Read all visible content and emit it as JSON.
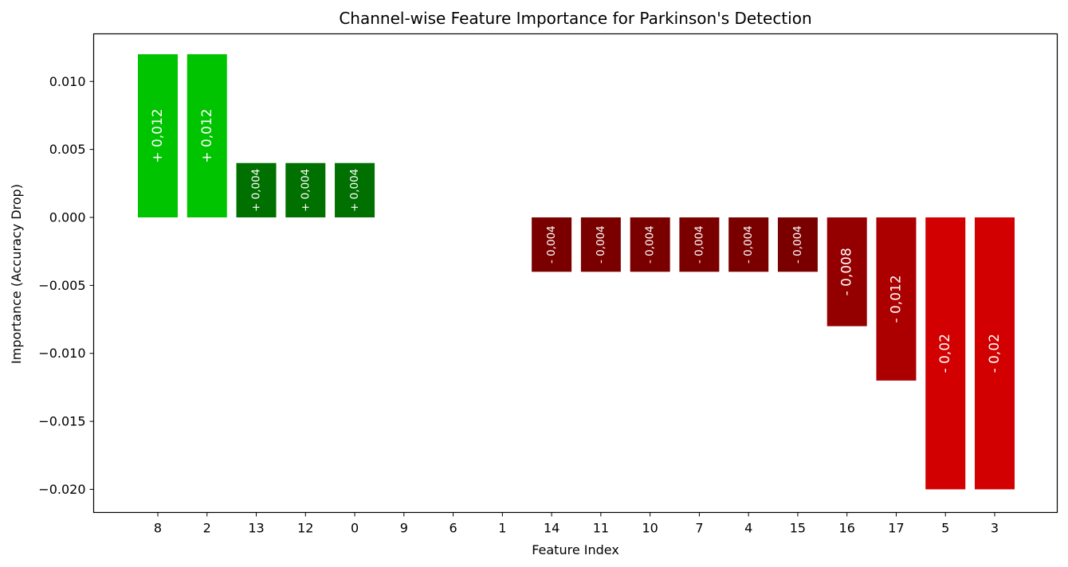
{
  "chart_data": {
    "type": "bar",
    "title": "Channel-wise Feature Importance for Parkinson's Detection",
    "xlabel": "Feature Index",
    "ylabel": "Importance (Accuracy Drop)",
    "categories": [
      "8",
      "2",
      "13",
      "12",
      "0",
      "9",
      "6",
      "1",
      "14",
      "11",
      "10",
      "7",
      "4",
      "15",
      "16",
      "17",
      "5",
      "3"
    ],
    "values": [
      0.012,
      0.012,
      0.004,
      0.004,
      0.004,
      0,
      0,
      0,
      -0.004,
      -0.004,
      -0.004,
      -0.004,
      -0.004,
      -0.004,
      -0.008,
      -0.012,
      -0.02,
      -0.02
    ],
    "bar_labels": [
      "+ 0,012",
      "+ 0,012",
      "+ 0,004",
      "+ 0,004",
      "+ 0,004",
      "",
      "",
      "",
      "- 0,004",
      "- 0,004",
      "- 0,004",
      "- 0,004",
      "- 0,004",
      "- 0,004",
      "- 0,008",
      "- 0,012",
      "- 0,02",
      "- 0,02"
    ],
    "bar_colors": [
      "#00c400",
      "#00c400",
      "#007000",
      "#007000",
      "#007000",
      "#ffffff",
      "#ffffff",
      "#ffffff",
      "#7a0000",
      "#7a0000",
      "#7a0000",
      "#7a0000",
      "#7a0000",
      "#7a0000",
      "#940000",
      "#ac0000",
      "#d20000",
      "#d20000"
    ],
    "ylim": [
      -0.0217,
      0.0135
    ],
    "yticks": [
      -0.02,
      -0.015,
      -0.01,
      -0.005,
      0,
      0.005,
      0.01
    ],
    "ytick_labels": [
      "−0.020",
      "−0.015",
      "−0.010",
      "−0.005",
      "0.000",
      "0.005",
      "0.010"
    ],
    "grid": false,
    "legend": "none"
  }
}
